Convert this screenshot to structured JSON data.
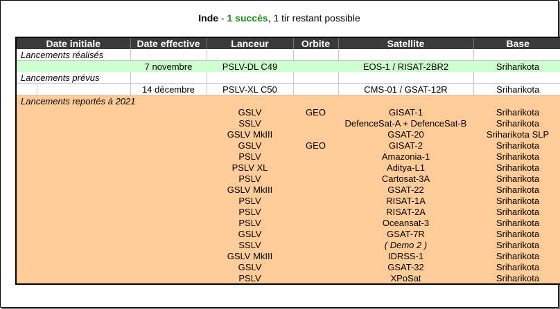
{
  "title": {
    "country": "Inde",
    "separator": " - ",
    "success_text": "1 succès",
    "rest": ", 1 tir restant possible"
  },
  "colors": {
    "header_bg": "#3a3a3a",
    "realized_row_bg": "#ccffcc",
    "postponed_bg": "#ffcc99",
    "success_text": "#1a8a1a"
  },
  "headers": {
    "date_initiale": "Date initiale",
    "date_effective": "Date effective",
    "lanceur": "Lanceur",
    "orbite": "Orbite",
    "satellite": "Satellite",
    "base": "Base"
  },
  "sections": {
    "realises": "Lancements réalisés",
    "prevus": "Lancements prévus",
    "reportes": "Lancements reportés à 2021"
  },
  "realises": [
    {
      "date_initiale": "",
      "date_effective": "7 novembre",
      "lanceur": "PSLV-DL C49",
      "orbite": "",
      "satellite": "EOS-1 / RISAT-2BR2",
      "base": "Sriharikota"
    }
  ],
  "prevus": [
    {
      "date_initiale": "",
      "date_effective": "14 décembre",
      "lanceur": "PSLV-XL C50",
      "orbite": "",
      "satellite": "CMS-01 / GSAT-12R",
      "base": "Sriharikota"
    }
  ],
  "reportes": [
    {
      "lanceur": "GSLV",
      "orbite": "GEO",
      "satellite": "GISAT-1",
      "base": "Sriharikota"
    },
    {
      "lanceur": "SSLV",
      "orbite": "",
      "satellite": "DefenceSat-A + DefenceSat-B",
      "base": "Sriharikota"
    },
    {
      "lanceur": "GSLV MkIII",
      "orbite": "",
      "satellite": "GSAT-20",
      "base": "Sriharikota SLP"
    },
    {
      "lanceur": "GSLV",
      "orbite": "GEO",
      "satellite": "GISAT-2",
      "base": "Sriharikota"
    },
    {
      "lanceur": "PSLV",
      "orbite": "",
      "satellite": "Amazonia-1",
      "base": "Sriharikota"
    },
    {
      "lanceur": "PSLV XL",
      "orbite": "",
      "satellite": "Aditya-L1",
      "base": "Sriharikota"
    },
    {
      "lanceur": "PSLV",
      "orbite": "",
      "satellite": "Cartosat-3A",
      "base": "Sriharikota"
    },
    {
      "lanceur": "GSLV MkIII",
      "orbite": "",
      "satellite": "GSAT-22",
      "base": "Sriharikota"
    },
    {
      "lanceur": "PSLV",
      "orbite": "",
      "satellite": "RISAT-1A",
      "base": "Sriharikota"
    },
    {
      "lanceur": "PSLV",
      "orbite": "",
      "satellite": "RISAT-2A",
      "base": "Sriharikota"
    },
    {
      "lanceur": "PSLV",
      "orbite": "",
      "satellite": "Oceansat-3",
      "base": "Sriharikota"
    },
    {
      "lanceur": "GSLV",
      "orbite": "",
      "satellite": "GSAT-7R",
      "base": "Sriharikota"
    },
    {
      "lanceur": "SSLV",
      "orbite": "",
      "satellite": "( Demo 2 )",
      "base": "Sriharikota",
      "italic": true
    },
    {
      "lanceur": "GSLV MkIII",
      "orbite": "",
      "satellite": "IDRSS-1",
      "base": "Sriharikota"
    },
    {
      "lanceur": "GSLV",
      "orbite": "",
      "satellite": "GSAT-32",
      "base": "Sriharikota"
    },
    {
      "lanceur": "PSLV",
      "orbite": "",
      "satellite": "XPoSat",
      "base": "Sriharikota"
    }
  ]
}
